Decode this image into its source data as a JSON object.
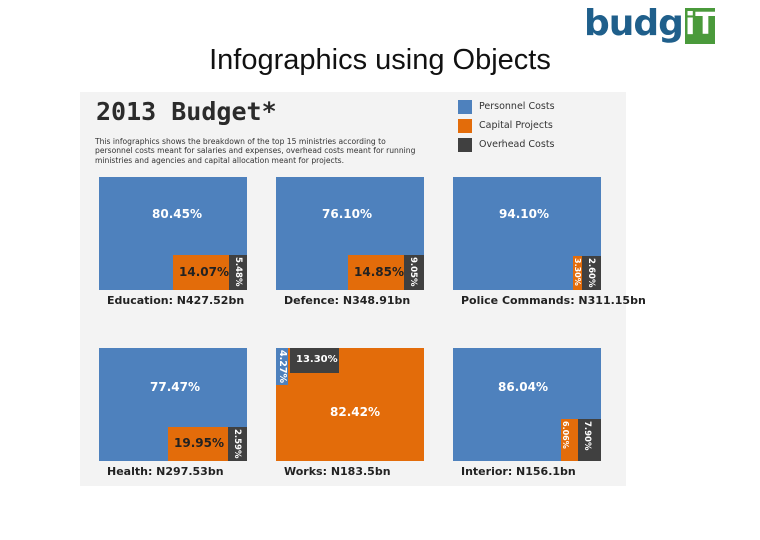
{
  "logo": {
    "text_main": "budg",
    "text_accent": "iT"
  },
  "slide_title": "Infographics using Objects",
  "infographic": {
    "title": "2013 Budget*",
    "description": "This infographics shows the breakdown of the top 15 ministries according to personnel costs meant for salaries and expenses, overhead costs meant for running ministries and agencies and capital allocation meant for projects.",
    "legend": [
      {
        "key": "personnel",
        "label": "Personnel Costs",
        "color": "#4e81bd"
      },
      {
        "key": "capital",
        "label": "Capital Projects",
        "color": "#e36c0a"
      },
      {
        "key": "overhead",
        "label": "Overhead Costs",
        "color": "#404040"
      }
    ]
  },
  "chart_data": {
    "type": "treemap",
    "title": "2013 Budget*",
    "series_names": [
      "Personnel Costs",
      "Capital Projects",
      "Overhead Costs"
    ],
    "series_colors": [
      "#4e81bd",
      "#e36c0a",
      "#404040"
    ],
    "ministries": [
      {
        "caption": "Education: N427.52bn",
        "personnel": 80.45,
        "capital": 14.07,
        "overhead": 5.48,
        "labels": {
          "personnel": "80.45%",
          "capital": "14.07%",
          "overhead": "5.48%"
        }
      },
      {
        "caption": "Defence: N348.91bn",
        "personnel": 76.1,
        "capital": 14.85,
        "overhead": 9.05,
        "labels": {
          "personnel": "76.10%",
          "capital": "14.85%",
          "overhead": "9.05%"
        }
      },
      {
        "caption": "Police Commands: N311.15bn",
        "personnel": 94.1,
        "capital": 3.3,
        "overhead": 2.6,
        "labels": {
          "personnel": "94.10%",
          "capital": "3.30%",
          "overhead": "2.60%"
        }
      },
      {
        "caption": "Health: N297.53bn",
        "personnel": 77.47,
        "capital": 19.95,
        "overhead": 2.59,
        "labels": {
          "personnel": "77.47%",
          "capital": "19.95%",
          "overhead": "2.59%"
        }
      },
      {
        "caption": "Works: N183.5bn",
        "personnel": 4.27,
        "capital": 82.42,
        "overhead": 13.3,
        "labels": {
          "personnel": "4.27%",
          "capital": "82.42%",
          "overhead": "13.30%"
        }
      },
      {
        "caption": "Interior: N156.1bn",
        "personnel": 86.04,
        "capital": 6.06,
        "overhead": 7.9,
        "labels": {
          "personnel": "86.04%",
          "capital": "6.06%",
          "overhead": "7.90%"
        }
      }
    ]
  }
}
